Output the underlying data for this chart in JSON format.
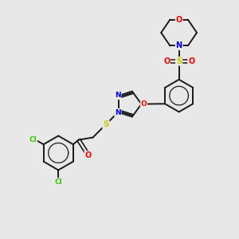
{
  "bg_color": "#e8e8e8",
  "bond_color": "#1a1a1a",
  "atom_colors": {
    "N": "#0000ee",
    "O": "#ff0000",
    "S": "#cccc00",
    "Cl": "#33cc00",
    "C": "#1a1a1a"
  },
  "figsize": [
    3.0,
    3.0
  ],
  "dpi": 100
}
